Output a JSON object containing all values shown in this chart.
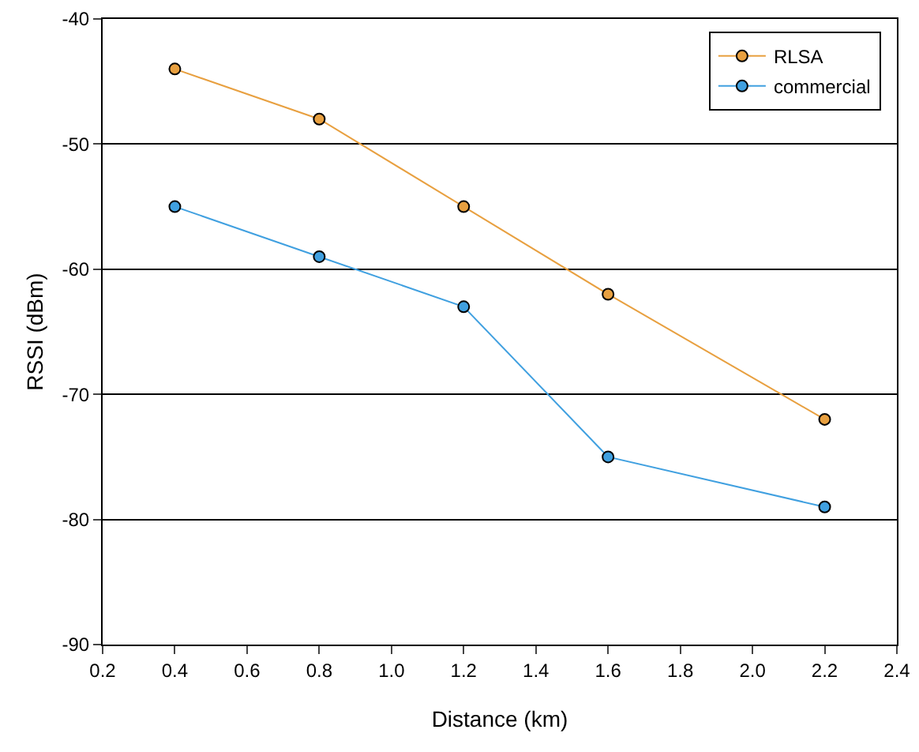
{
  "chart_data": {
    "type": "line",
    "xlabel": "Distance (km)",
    "ylabel": "RSSI (dBm)",
    "x": [
      0.4,
      0.8,
      1.2,
      1.6,
      2.2
    ],
    "series": [
      {
        "name": "RLSA",
        "color": "#e8a040",
        "values": [
          -44,
          -48,
          -55,
          -62,
          -72
        ]
      },
      {
        "name": "commercial",
        "color": "#40a0e0",
        "values": [
          -55,
          -59,
          -63,
          -75,
          -79
        ]
      }
    ],
    "xlim": [
      0.2,
      2.4
    ],
    "xticks": [
      0.2,
      0.4,
      0.6,
      0.8,
      {
        "value": 1.0,
        "label": "1.0"
      },
      1.2,
      1.4,
      1.6,
      1.8,
      {
        "value": 2.0,
        "label": "2.0"
      },
      2.2,
      2.4
    ],
    "ylim": [
      -90,
      -40
    ],
    "yticks": [
      -90,
      -80,
      -70,
      -60,
      -50,
      -40
    ],
    "grid": "y",
    "legend": "top right",
    "marker": "circle",
    "line_style": "solid"
  }
}
